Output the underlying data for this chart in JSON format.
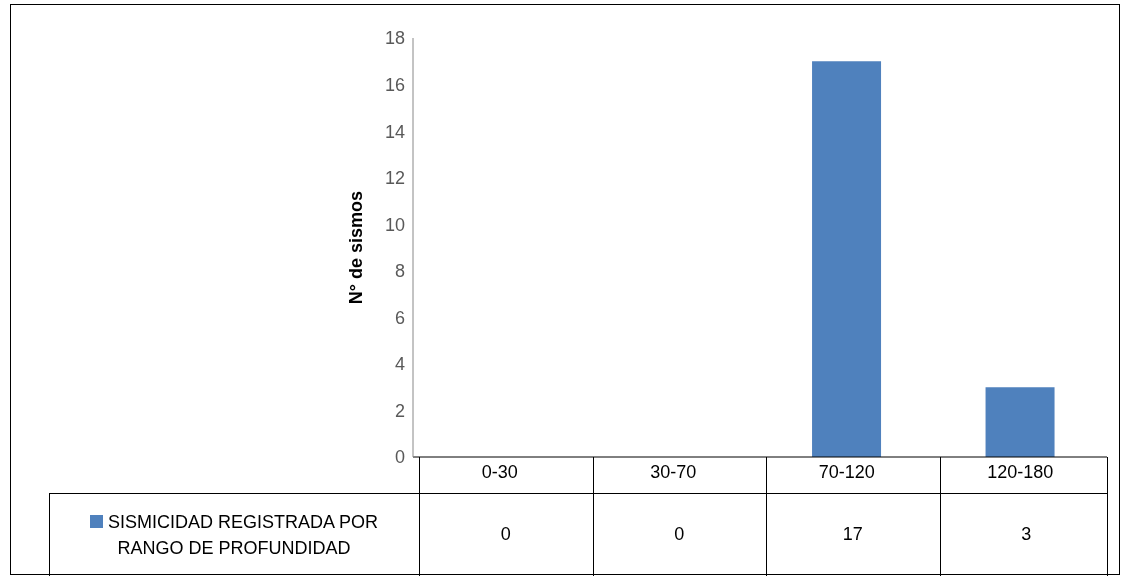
{
  "chart_data": {
    "type": "bar",
    "ylabel": "N° de sismos",
    "categories": [
      "0-30",
      "30-70",
      "70-120",
      "120-180"
    ],
    "series": [
      {
        "name": "SISMICIDAD REGISTRADA POR RANGO DE PROFUNDIDAD",
        "color": "#4f81bd",
        "values": [
          0,
          0,
          17,
          3
        ]
      }
    ],
    "ylim": [
      0,
      18
    ],
    "yticks": [
      0,
      2,
      4,
      6,
      8,
      10,
      12,
      14,
      16,
      18
    ],
    "legend": "bottom",
    "data_labels": true
  }
}
